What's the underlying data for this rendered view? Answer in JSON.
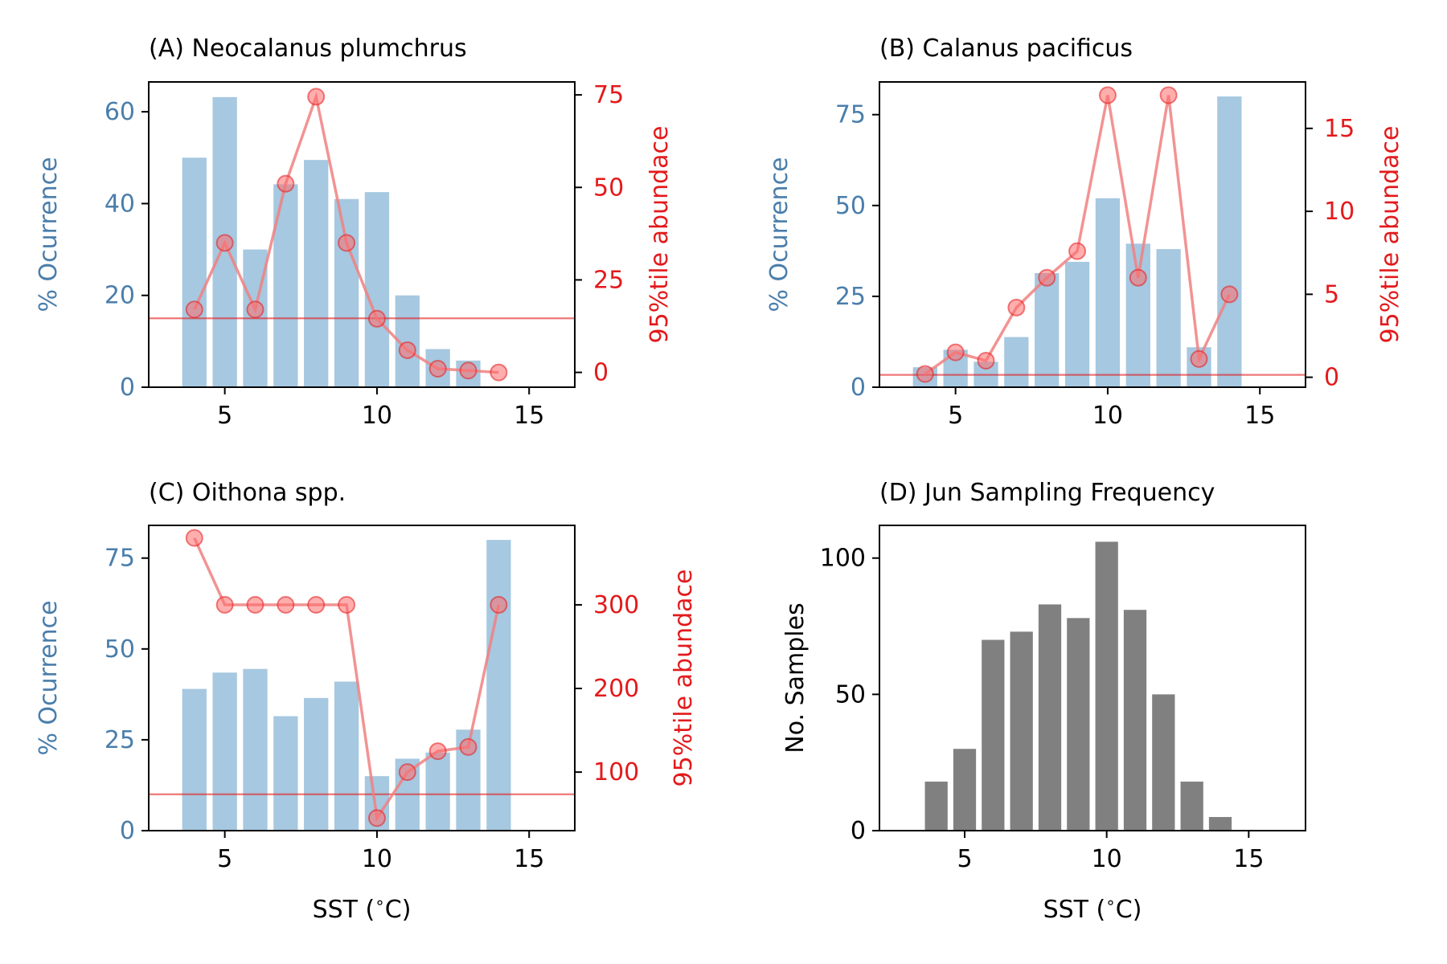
{
  "style": {
    "bar_color": "#a6c8e0",
    "left_axis_color": "#4a7eab",
    "right_axis_color": "#e31a1c",
    "line_color": "#f08080",
    "freq_bar_color": "#808080"
  },
  "chart_data": [
    {
      "type": "bar",
      "title": "(A) Neocalanus plumchrus",
      "xlabel": "",
      "ylabel": "% Ocurrence",
      "y2label": "95%tile abundace",
      "xlim": [
        2.5,
        16.5
      ],
      "ylim": [
        0,
        66.5
      ],
      "y2lim": [
        -4,
        78.5
      ],
      "xticks": [
        "5",
        "10",
        "15"
      ],
      "yticks": [
        "0",
        "20",
        "40",
        "60"
      ],
      "y2ticks": [
        "0",
        "25",
        "50",
        "75"
      ],
      "x": [
        4,
        5,
        6,
        7,
        8,
        9,
        10,
        11,
        12,
        13,
        14
      ],
      "bar_values": [
        50,
        63.2,
        30,
        44.2,
        49.5,
        41,
        42.5,
        20,
        8.3,
        5.8,
        0
      ],
      "line_values": [
        17,
        35,
        17,
        51,
        74.5,
        35,
        14.5,
        6,
        1,
        0.5,
        0
      ],
      "hline": 15
    },
    {
      "type": "bar",
      "title": "(B) Calanus pacificus",
      "xlabel": "",
      "ylabel": "% Ocurrence",
      "y2label": "95%tile abundace",
      "xlim": [
        2.5,
        16.5
      ],
      "ylim": [
        0,
        84
      ],
      "y2lim": [
        -0.6,
        17.8
      ],
      "xticks": [
        "5",
        "10",
        "15"
      ],
      "yticks": [
        "0",
        "25",
        "50",
        "75"
      ],
      "y2ticks": [
        "0",
        "5",
        "10",
        "15"
      ],
      "x": [
        4,
        5,
        6,
        7,
        8,
        9,
        10,
        11,
        12,
        13,
        14
      ],
      "bar_values": [
        5.5,
        10.3,
        7,
        13.8,
        31.4,
        34.5,
        52,
        39.5,
        38,
        11,
        80
      ],
      "line_values": [
        0.2,
        1.5,
        1.0,
        4.2,
        6.0,
        7.6,
        17.0,
        6.0,
        17.0,
        1.1,
        5.0
      ],
      "hline": 3.4
    },
    {
      "type": "bar",
      "title": "(C) Oithona spp.",
      "xlabel": "SST ($^\\circ$C)",
      "ylabel": "% Ocurrence",
      "y2label": "95%tile abundace",
      "xlim": [
        2.5,
        16.5
      ],
      "ylim": [
        0,
        84
      ],
      "y2lim": [
        30,
        395
      ],
      "xticks": [
        "5",
        "10",
        "15"
      ],
      "yticks": [
        "0",
        "25",
        "50",
        "75"
      ],
      "y2ticks": [
        "100",
        "200",
        "300"
      ],
      "x": [
        4,
        5,
        6,
        7,
        8,
        9,
        10,
        11,
        12,
        13,
        14
      ],
      "bar_values": [
        39,
        43.5,
        44.5,
        31.5,
        36.5,
        41,
        15,
        19.8,
        21.5,
        27.8,
        80
      ],
      "line_values": [
        380,
        300,
        300,
        300,
        300,
        300,
        45,
        100,
        125,
        130,
        300
      ],
      "hline": 10
    },
    {
      "type": "bar",
      "title": "(D) Jun Sampling Frequency",
      "xlabel": "SST ($^\\circ$C)",
      "ylabel": "No. Samples",
      "xlim": [
        2,
        17
      ],
      "ylim": [
        0,
        112
      ],
      "xticks": [
        "5",
        "10",
        "15"
      ],
      "yticks": [
        "0",
        "50",
        "100"
      ],
      "x": [
        4,
        5,
        6,
        7,
        8,
        9,
        10,
        11,
        12,
        13,
        14
      ],
      "bar_values": [
        18,
        30,
        70,
        73,
        83,
        78,
        106,
        81,
        50,
        18,
        5
      ]
    }
  ]
}
